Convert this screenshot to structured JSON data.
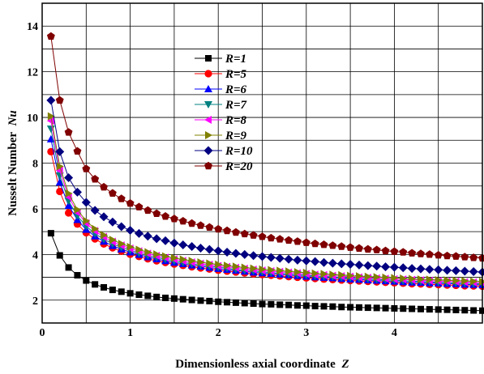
{
  "chart_data": {
    "type": "line",
    "xlabel": "Dimensionless axial coordinate",
    "xlabel_var": "Z",
    "ylabel": "Nusselt Number",
    "ylabel_var": "Nu",
    "xlim": [
      0,
      5
    ],
    "ylim": [
      1,
      15
    ],
    "x_ticks": [
      "0",
      "1",
      "2",
      "3",
      "4"
    ],
    "y_ticks": [
      "2",
      "4",
      "6",
      "8",
      "10",
      "12",
      "14"
    ],
    "grid": true,
    "legend_placement": "top-center",
    "x": [
      0.1,
      0.2,
      0.3,
      0.4,
      0.5,
      0.6,
      0.7,
      0.8,
      0.9,
      1.0,
      1.1,
      1.2,
      1.3,
      1.4,
      1.5,
      1.6,
      1.7,
      1.8,
      1.9,
      2.0,
      2.1,
      2.2,
      2.3,
      2.4,
      2.5,
      2.6,
      2.7,
      2.8,
      2.9,
      3.0,
      3.1,
      3.2,
      3.3,
      3.4,
      3.5,
      3.6,
      3.7,
      3.8,
      3.9,
      4.0,
      4.1,
      4.2,
      4.3,
      4.4,
      4.5,
      4.6,
      4.7,
      4.8,
      4.9,
      5.0
    ],
    "series": [
      {
        "name": "R=1",
        "color": "#000000",
        "marker": "square",
        "values": [
          4.93,
          3.96,
          3.43,
          3.09,
          2.86,
          2.69,
          2.56,
          2.45,
          2.37,
          2.3,
          2.24,
          2.19,
          2.14,
          2.1,
          2.07,
          2.04,
          2.01,
          1.98,
          1.96,
          1.93,
          1.91,
          1.89,
          1.87,
          1.85,
          1.83,
          1.82,
          1.8,
          1.79,
          1.77,
          1.76,
          1.74,
          1.73,
          1.72,
          1.7,
          1.69,
          1.68,
          1.67,
          1.66,
          1.65,
          1.64,
          1.63,
          1.62,
          1.61,
          1.6,
          1.59,
          1.58,
          1.57,
          1.56,
          1.55,
          1.54
        ]
      },
      {
        "name": "R=5",
        "color": "#ff0000",
        "marker": "circle",
        "values": [
          8.5,
          6.76,
          5.82,
          5.33,
          4.95,
          4.68,
          4.46,
          4.29,
          4.14,
          4.01,
          3.91,
          3.81,
          3.72,
          3.65,
          3.58,
          3.52,
          3.46,
          3.41,
          3.36,
          3.31,
          3.27,
          3.23,
          3.19,
          3.15,
          3.12,
          3.09,
          3.06,
          3.03,
          3.0,
          2.97,
          2.95,
          2.92,
          2.9,
          2.88,
          2.86,
          2.84,
          2.82,
          2.8,
          2.78,
          2.76,
          2.74,
          2.72,
          2.71,
          2.69,
          2.68,
          2.66,
          2.65,
          2.63,
          2.62,
          2.61
        ]
      },
      {
        "name": "R=6",
        "color": "#0000ff",
        "marker": "triangle-up",
        "values": [
          9.05,
          7.16,
          6.14,
          5.52,
          5.09,
          4.8,
          4.57,
          4.38,
          4.23,
          4.1,
          3.99,
          3.89,
          3.8,
          3.72,
          3.65,
          3.59,
          3.53,
          3.48,
          3.43,
          3.38,
          3.34,
          3.3,
          3.26,
          3.22,
          3.19,
          3.16,
          3.13,
          3.1,
          3.07,
          3.04,
          3.01,
          2.99,
          2.97,
          2.94,
          2.92,
          2.9,
          2.88,
          2.86,
          2.84,
          2.82,
          2.8,
          2.78,
          2.77,
          2.75,
          2.74,
          2.72,
          2.71,
          2.69,
          2.68,
          2.67
        ]
      },
      {
        "name": "R=7",
        "color": "#008080",
        "marker": "triangle-down",
        "values": [
          9.5,
          7.45,
          6.34,
          5.69,
          5.24,
          4.91,
          4.67,
          4.47,
          4.31,
          4.18,
          4.06,
          3.96,
          3.87,
          3.79,
          3.72,
          3.65,
          3.59,
          3.54,
          3.49,
          3.44,
          3.4,
          3.35,
          3.31,
          3.28,
          3.24,
          3.21,
          3.18,
          3.15,
          3.12,
          3.09,
          3.06,
          3.04,
          3.02,
          2.99,
          2.97,
          2.95,
          2.93,
          2.91,
          2.89,
          2.87,
          2.85,
          2.83,
          2.82,
          2.8,
          2.78,
          2.77,
          2.75,
          2.74,
          2.73,
          2.71
        ]
      },
      {
        "name": "R=8",
        "color": "#ff00ff",
        "marker": "triangle-left",
        "values": [
          9.85,
          7.68,
          6.52,
          5.84,
          5.37,
          5.03,
          4.77,
          4.56,
          4.4,
          4.26,
          4.14,
          4.04,
          3.94,
          3.86,
          3.79,
          3.72,
          3.66,
          3.6,
          3.55,
          3.5,
          3.46,
          3.42,
          3.38,
          3.34,
          3.3,
          3.27,
          3.24,
          3.21,
          3.18,
          3.15,
          3.12,
          3.1,
          3.07,
          3.05,
          3.03,
          3.0,
          2.98,
          2.96,
          2.94,
          2.92,
          2.91,
          2.89,
          2.87,
          2.85,
          2.84,
          2.82,
          2.81,
          2.79,
          2.78,
          2.76
        ]
      },
      {
        "name": "R=9",
        "color": "#808000",
        "marker": "triangle-right",
        "values": [
          10.05,
          7.86,
          6.67,
          5.96,
          5.47,
          5.12,
          4.85,
          4.64,
          4.47,
          4.33,
          4.21,
          4.1,
          4.01,
          3.92,
          3.85,
          3.78,
          3.72,
          3.66,
          3.61,
          3.56,
          3.51,
          3.47,
          3.43,
          3.39,
          3.35,
          3.32,
          3.29,
          3.26,
          3.23,
          3.2,
          3.17,
          3.15,
          3.12,
          3.1,
          3.07,
          3.05,
          3.03,
          3.01,
          2.99,
          2.97,
          2.95,
          2.93,
          2.91,
          2.9,
          2.88,
          2.87,
          2.85,
          2.84,
          2.82,
          2.81
        ]
      },
      {
        "name": "R=10",
        "color": "#000080",
        "marker": "diamond",
        "values": [
          10.75,
          8.5,
          7.36,
          6.73,
          6.28,
          5.93,
          5.65,
          5.42,
          5.22,
          5.06,
          4.92,
          4.8,
          4.69,
          4.6,
          4.5,
          4.42,
          4.35,
          4.28,
          4.22,
          4.16,
          4.1,
          4.05,
          4.0,
          3.95,
          3.91,
          3.87,
          3.83,
          3.79,
          3.75,
          3.72,
          3.69,
          3.65,
          3.62,
          3.59,
          3.57,
          3.54,
          3.51,
          3.49,
          3.46,
          3.44,
          3.42,
          3.39,
          3.37,
          3.35,
          3.33,
          3.31,
          3.29,
          3.27,
          3.25,
          3.23
        ]
      },
      {
        "name": "R=20",
        "color": "#800000",
        "marker": "pentagon",
        "values": [
          13.55,
          10.75,
          9.35,
          8.52,
          7.75,
          7.3,
          6.95,
          6.68,
          6.44,
          6.24,
          6.08,
          5.93,
          5.79,
          5.67,
          5.56,
          5.46,
          5.36,
          5.27,
          5.19,
          5.11,
          5.04,
          4.97,
          4.9,
          4.84,
          4.78,
          4.72,
          4.67,
          4.62,
          4.57,
          4.52,
          4.47,
          4.43,
          4.39,
          4.35,
          4.31,
          4.27,
          4.23,
          4.2,
          4.16,
          4.13,
          4.1,
          4.06,
          4.03,
          4.0,
          3.97,
          3.94,
          3.92,
          3.89,
          3.86,
          3.84
        ]
      }
    ]
  }
}
